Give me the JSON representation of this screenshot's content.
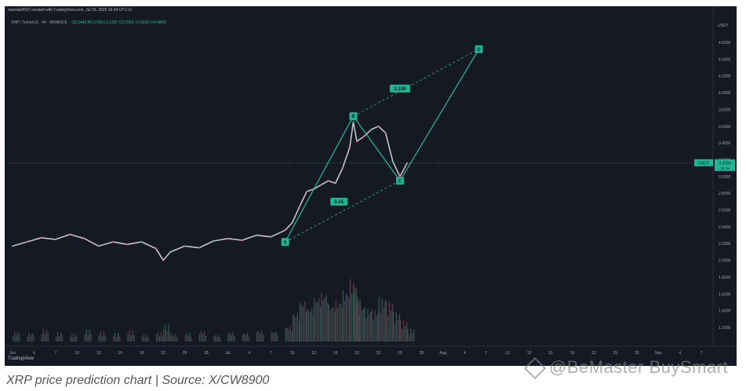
{
  "header": {
    "attribution": "newstar0507 created with TradingView.com, Jul 26, 2025 16:34 UTC+9",
    "pair": "XRP / TetherUS · 4h · BINANCE",
    "ohlc": "O3.1443 H3.1766 L3.1357 C3.1593 +0.0150 (+0.48%)"
  },
  "footer": {
    "tv_logo": "TradingView",
    "caption": "XRP price prediction chart | Source: X/CW8900",
    "watermark": "@BeMaster BuySmart"
  },
  "chart_data": {
    "type": "line",
    "title": "",
    "xlabel": "",
    "ylabel": "USDT",
    "x_ticks": [
      "Jun",
      "4",
      "7",
      "10",
      "13",
      "16",
      "19",
      "22",
      "25",
      "28",
      "Jul",
      "4",
      "7",
      "10",
      "13",
      "16",
      "19",
      "22",
      "25",
      "28",
      "Aug",
      "4",
      "7",
      "10",
      "13",
      "16",
      "19",
      "22",
      "25",
      "28",
      "Sep",
      "4",
      "7"
    ],
    "y_ticks": [
      1.2,
      1.4,
      1.6,
      1.8,
      2.0,
      2.2,
      2.4,
      2.6,
      2.8,
      3.0,
      3.2,
      3.4,
      3.6,
      3.8,
      4.0,
      4.2,
      4.4,
      4.6
    ],
    "ylim": [
      1.05,
      4.9
    ],
    "price_label": "3.1593",
    "price_tag": "USDT",
    "countdown": "26:29",
    "series": [
      {
        "x": [
          "Jun 1",
          "Jun 3",
          "Jun 5",
          "Jun 7",
          "Jun 9",
          "Jun 11",
          "Jun 13",
          "Jun 15",
          "Jun 17",
          "Jun 19",
          "Jun 21",
          "Jun 22",
          "Jun 23",
          "Jun 25",
          "Jun 27",
          "Jun 29",
          "Jul 1",
          "Jul 3",
          "Jul 5",
          "Jul 7",
          "Jul 9",
          "Jul 10",
          "Jul 11",
          "Jul 12",
          "Jul 13",
          "Jul 14",
          "Jul 15",
          "Jul 16",
          "Jul 17",
          "Jul 18",
          "Jul 18.5",
          "Jul 19",
          "Jul 20",
          "Jul 21",
          "Jul 22",
          "Jul 23",
          "Jul 24",
          "Jul 25",
          "Jul 26"
        ],
        "values": [
          2.17,
          2.22,
          2.27,
          2.25,
          2.31,
          2.26,
          2.17,
          2.22,
          2.19,
          2.22,
          2.14,
          2.0,
          2.1,
          2.17,
          2.15,
          2.23,
          2.26,
          2.24,
          2.3,
          2.28,
          2.36,
          2.45,
          2.64,
          2.82,
          2.85,
          2.9,
          2.95,
          2.92,
          3.1,
          3.35,
          3.65,
          3.42,
          3.48,
          3.56,
          3.6,
          3.52,
          3.18,
          3.0,
          3.16
        ]
      }
    ],
    "volume": [
      0.12,
      0.1,
      0.15,
      0.11,
      0.09,
      0.14,
      0.12,
      0.1,
      0.13,
      0.08,
      0.11,
      0.2,
      0.09,
      0.1,
      0.12,
      0.08,
      0.11,
      0.1,
      0.13,
      0.12,
      0.18,
      0.35,
      0.5,
      0.42,
      0.55,
      0.6,
      0.45,
      0.5,
      0.62,
      0.75,
      0.58,
      0.45,
      0.4,
      0.38,
      0.52,
      0.48,
      0.35,
      0.25,
      0.15
    ],
    "annotations": [
      {
        "label": "A",
        "x": "Jul 9",
        "y": 2.22
      },
      {
        "label": "B",
        "x": "Jul 18.5",
        "y": 3.72
      },
      {
        "label": "C",
        "x": "Jul 25",
        "y": 2.95
      },
      {
        "label": "D",
        "x": "Aug 5",
        "y": 4.52
      },
      {
        "label": "0.45",
        "x": "Jul 16.5",
        "y": 2.7
      },
      {
        "label": "3.199",
        "x": "Jul 25",
        "y": 4.05
      }
    ]
  }
}
